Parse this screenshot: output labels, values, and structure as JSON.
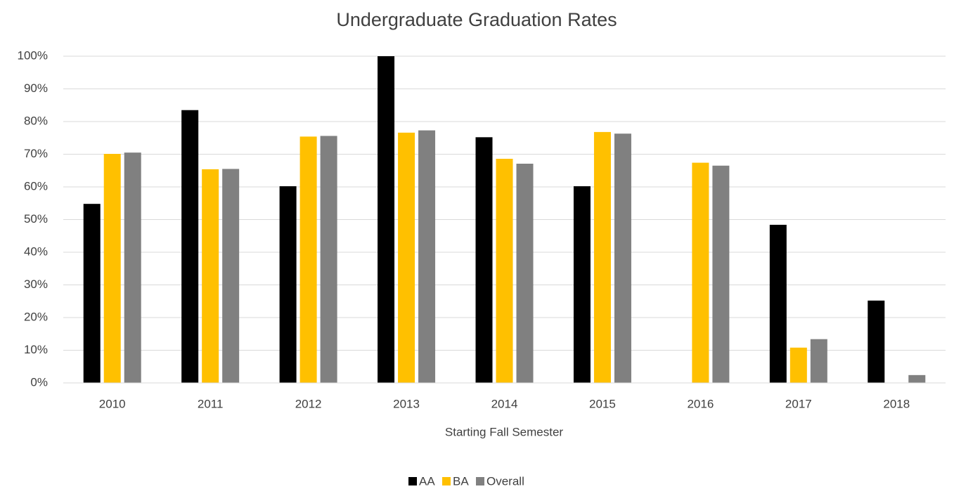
{
  "chart_data": {
    "type": "bar",
    "title": "Undergraduate Graduation Rates",
    "x_label": "Starting Fall Semester",
    "categories": [
      "2010",
      "2011",
      "2012",
      "2013",
      "2014",
      "2015",
      "2016",
      "2017",
      "2018"
    ],
    "series": [
      {
        "name": "AA",
        "color": "#000000",
        "values": [
          54.8,
          83.5,
          60.2,
          100,
          75.2,
          60.2,
          null,
          48.4,
          25.2
        ]
      },
      {
        "name": "BA",
        "color": "#ffc000",
        "values": [
          70.1,
          65.4,
          75.4,
          76.6,
          68.6,
          76.8,
          67.4,
          10.8,
          null
        ]
      },
      {
        "name": "Overall",
        "color": "#808080",
        "values": [
          70.5,
          65.5,
          75.6,
          77.3,
          67.1,
          76.3,
          66.5,
          13.4,
          2.4
        ]
      }
    ],
    "ylim": [
      0,
      100
    ],
    "yticks": [
      {
        "value": 0,
        "label": "0%"
      },
      {
        "value": 10,
        "label": "10%"
      },
      {
        "value": 20,
        "label": "20%"
      },
      {
        "value": 30,
        "label": "30%"
      },
      {
        "value": 40,
        "label": "40%"
      },
      {
        "value": 50,
        "label": "50%"
      },
      {
        "value": 60,
        "label": "60%"
      },
      {
        "value": 70,
        "label": "70%"
      },
      {
        "value": 80,
        "label": "80%"
      },
      {
        "value": 90,
        "label": "90%"
      },
      {
        "value": 100,
        "label": "100%"
      }
    ],
    "grid": true,
    "legend": "bottom"
  }
}
